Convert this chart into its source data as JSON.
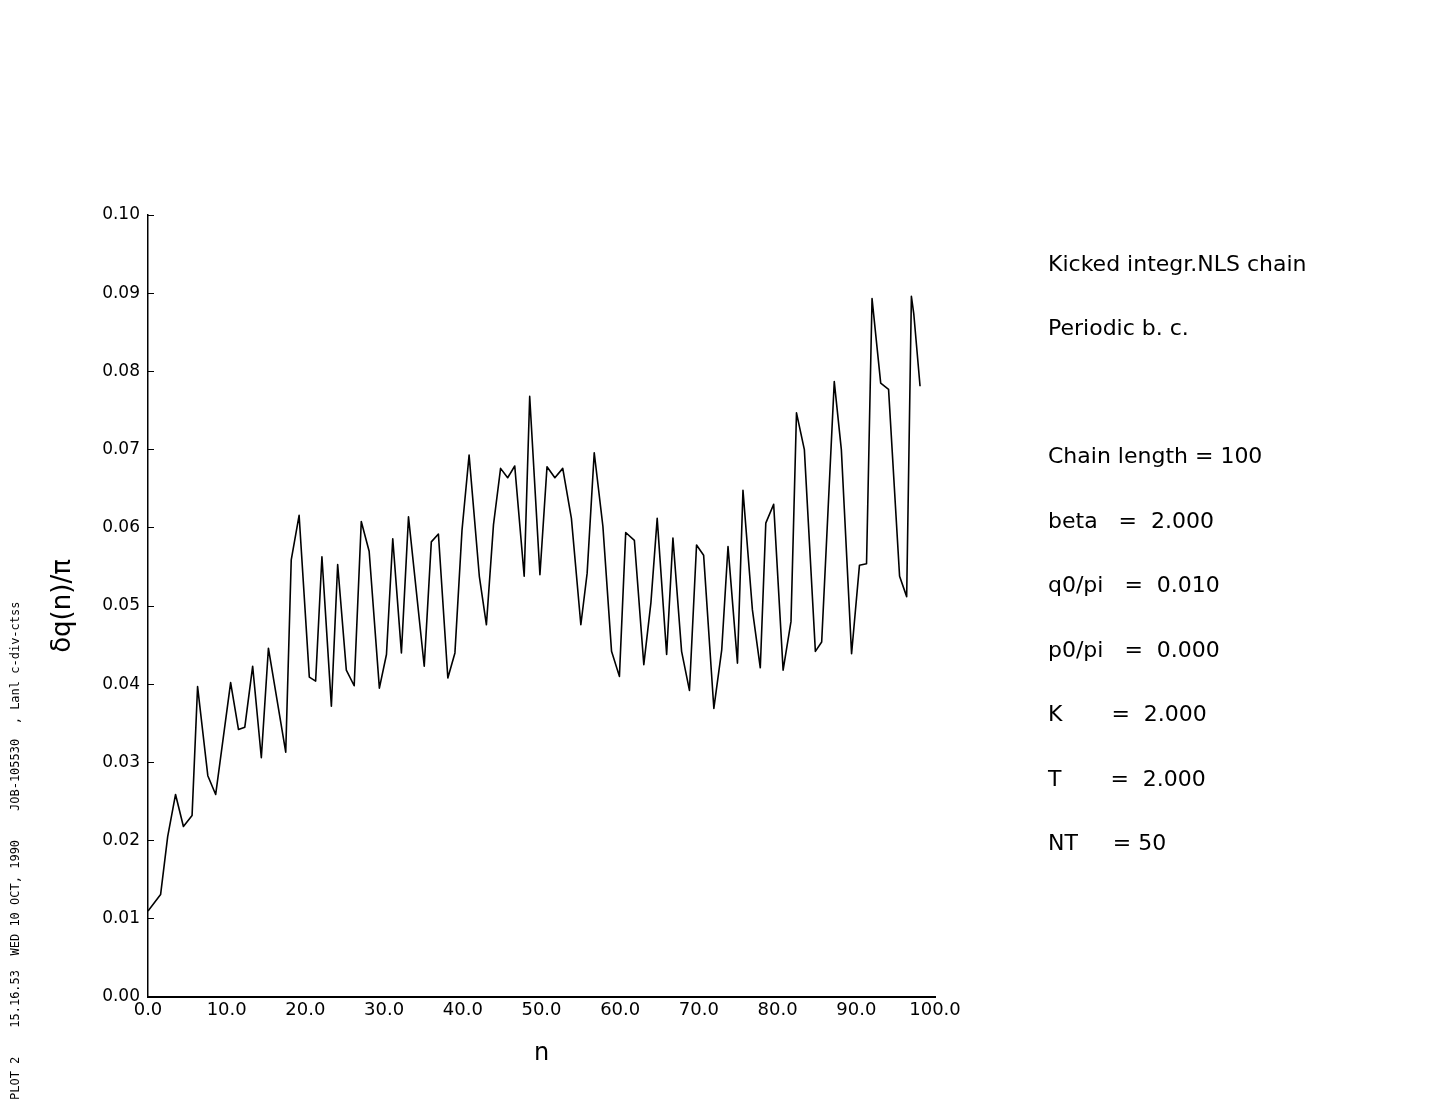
{
  "chart_data": {
    "type": "line",
    "xlabel": "n",
    "ylabel": "δq(n)/π",
    "x": [
      0,
      1.6,
      2.5,
      3.5,
      4.5,
      5.6,
      6.3,
      7.6,
      8.6,
      10.5,
      11.5,
      12.3,
      13.3,
      14.4,
      15.3,
      17.5,
      18.2,
      19.2,
      20.5,
      21.3,
      22.1,
      23.3,
      24.1,
      25.2,
      26.2,
      27.1,
      28.1,
      29.4,
      30.3,
      31.1,
      32.2,
      33.1,
      35.1,
      36,
      36.9,
      38.1,
      39,
      39.9,
      40.8,
      42.1,
      43,
      43.9,
      44.8,
      45.7,
      46.6,
      47.8,
      48.5,
      49.8,
      50.7,
      51.7,
      52.7,
      53.8,
      55,
      55.8,
      56.7,
      57.8,
      58.9,
      59.9,
      60.7,
      61.8,
      63,
      63.9,
      64.7,
      65.9,
      66.7,
      67.8,
      68.8,
      69.7,
      70.6,
      71.9,
      72.9,
      73.7,
      74.9,
      75.6,
      76.8,
      77.8,
      78.5,
      79.5,
      80.7,
      81.7,
      82.4,
      83.4,
      84.8,
      85.6,
      87.2,
      88.1,
      89.4,
      90.4,
      91.3,
      92,
      93.1,
      94.1,
      95.5,
      96.4,
      97,
      97.3,
      98.1
    ],
    "series": [
      {
        "color": "#000000",
        "values": [
          0.011,
          0.0131,
          0.0205,
          0.0259,
          0.0218,
          0.0232,
          0.0397,
          0.0283,
          0.0259,
          0.0402,
          0.0342,
          0.0345,
          0.0423,
          0.0306,
          0.0446,
          0.0313,
          0.0559,
          0.0616,
          0.0409,
          0.0404,
          0.0563,
          0.0372,
          0.0553,
          0.0418,
          0.0398,
          0.0608,
          0.057,
          0.0395,
          0.0438,
          0.0586,
          0.044,
          0.0614,
          0.0423,
          0.0582,
          0.0592,
          0.0408,
          0.044,
          0.0597,
          0.0693,
          0.0538,
          0.0476,
          0.0604,
          0.0676,
          0.0664,
          0.0679,
          0.0538,
          0.0768,
          0.054,
          0.0678,
          0.0664,
          0.0676,
          0.0612,
          0.0476,
          0.0542,
          0.0696,
          0.0602,
          0.0442,
          0.041,
          0.0594,
          0.0584,
          0.0425,
          0.0504,
          0.0612,
          0.0438,
          0.0587,
          0.0442,
          0.0392,
          0.0578,
          0.0565,
          0.0369,
          0.0444,
          0.0576,
          0.0427,
          0.0648,
          0.0495,
          0.0421,
          0.0606,
          0.063,
          0.0418,
          0.048,
          0.0747,
          0.07,
          0.0442,
          0.0454,
          0.0787,
          0.07,
          0.0439,
          0.0552,
          0.0554,
          0.0893,
          0.0785,
          0.0777,
          0.0538,
          0.0512,
          0.0896,
          0.0874,
          0.0781
        ]
      }
    ],
    "xlim": [
      0,
      100
    ],
    "xticks": [
      {
        "value": 0,
        "label": "0.0"
      },
      {
        "value": 10,
        "label": "10.0"
      },
      {
        "value": 20,
        "label": "20.0"
      },
      {
        "value": 30,
        "label": "30.0"
      },
      {
        "value": 40,
        "label": "40.0"
      },
      {
        "value": 50,
        "label": "50.0"
      },
      {
        "value": 60,
        "label": "60.0"
      },
      {
        "value": 70,
        "label": "70.0"
      },
      {
        "value": 80,
        "label": "80.0"
      },
      {
        "value": 90,
        "label": "90.0"
      },
      {
        "value": 100,
        "label": "100.0"
      }
    ],
    "ylim": [
      0,
      0.1
    ],
    "yticks": [
      {
        "value": 0,
        "label": "0.00"
      },
      {
        "value": 0.01,
        "label": "0.01"
      },
      {
        "value": 0.02,
        "label": "0.02"
      },
      {
        "value": 0.03,
        "label": "0.03"
      },
      {
        "value": 0.04,
        "label": "0.04"
      },
      {
        "value": 0.05,
        "label": "0.05"
      },
      {
        "value": 0.06,
        "label": "0.06"
      },
      {
        "value": 0.07,
        "label": "0.07"
      },
      {
        "value": 0.08,
        "label": "0.08"
      },
      {
        "value": 0.09,
        "label": "0.09"
      },
      {
        "value": 0.1,
        "label": "0.10"
      }
    ],
    "grid": false,
    "legend": false,
    "marker": "none",
    "line_style": "solid",
    "annotations": [
      "Kicked integr.NLS chain",
      "Periodic b. c.",
      "Chain length = 100",
      "beta   =  2.000",
      "q0/pi   =  0.010",
      "p0/pi   =  0.000",
      "K       =  2.000",
      "T       =  2.000",
      "NT     = 50",
      "PLOT 2    15.16.53  WED 10 OCT, 1990    JOB-105530  , Lanl c-div-ctss"
    ]
  }
}
